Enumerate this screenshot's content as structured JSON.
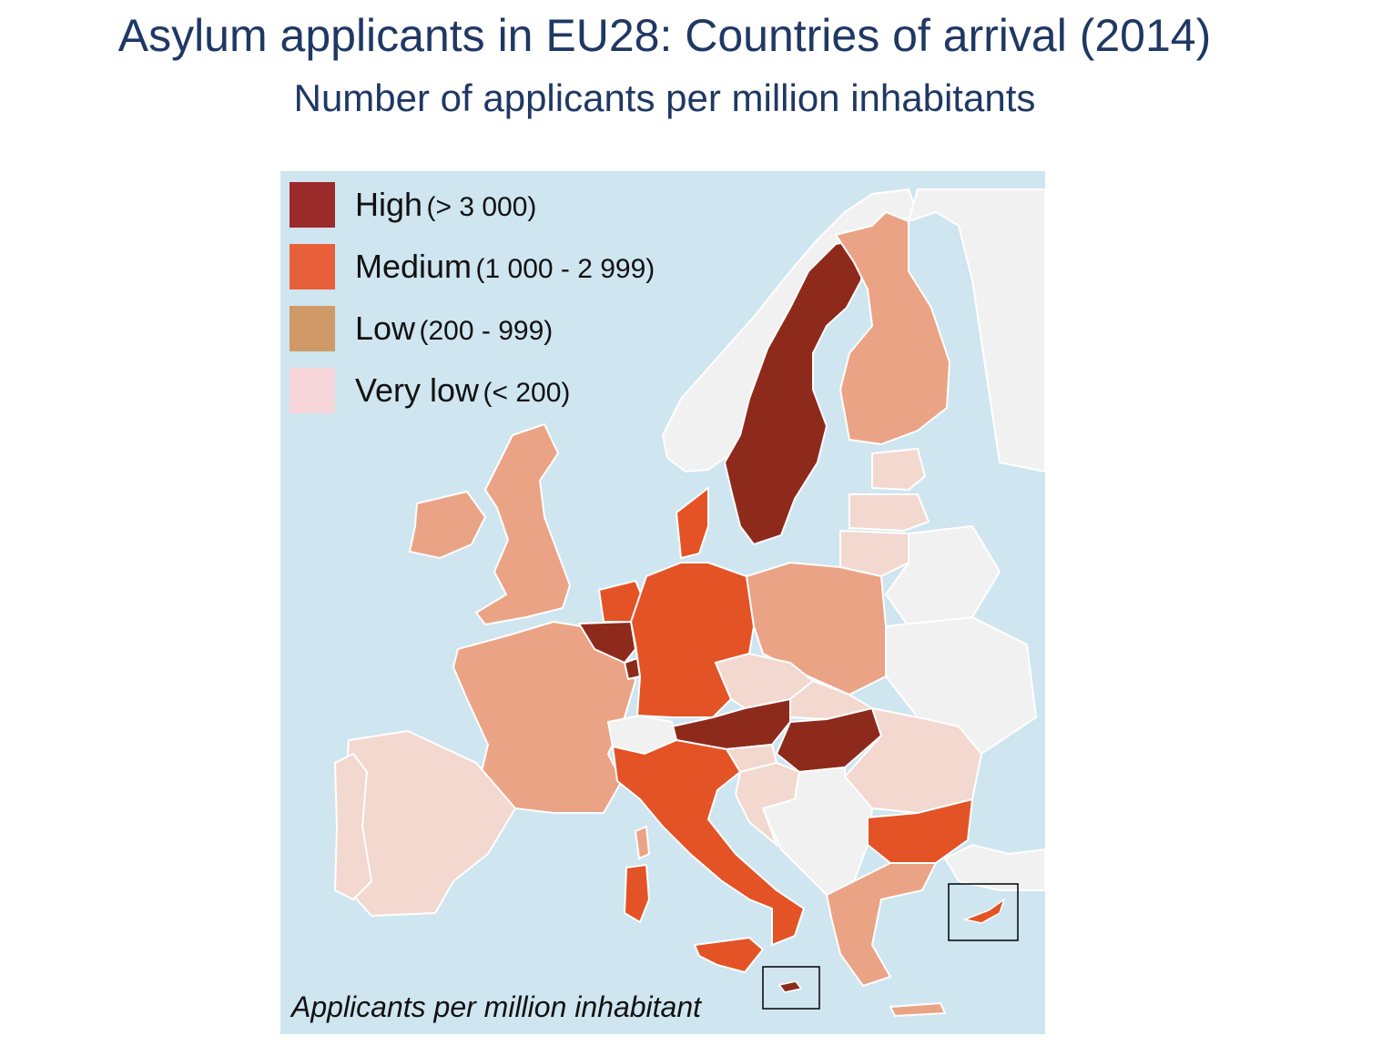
{
  "title": "Asylum applicants in EU28: Countries of arrival (2014)",
  "subtitle": "Number of applicants per million inhabitants",
  "caption": "Applicants per million inhabitant",
  "legend": [
    {
      "label": "High",
      "range": "(> 3 000)",
      "color": "#9b2a2a"
    },
    {
      "label": "Medium",
      "range": "(1 000 - 2 999)",
      "color": "#e8603a"
    },
    {
      "label": "Low",
      "range": "(200 - 999)",
      "color": "#cf9a68"
    },
    {
      "label": "Very low",
      "range": "(< 200)",
      "color": "#f7d6da"
    }
  ],
  "map_colors": {
    "sea": "#cfe5f0",
    "high": "#8e2a1c",
    "medium": "#e35325",
    "low": "#eba385",
    "very_low": "#f3d8d0",
    "non_eu": "#f1f1f1",
    "border": "#ffffff"
  }
}
